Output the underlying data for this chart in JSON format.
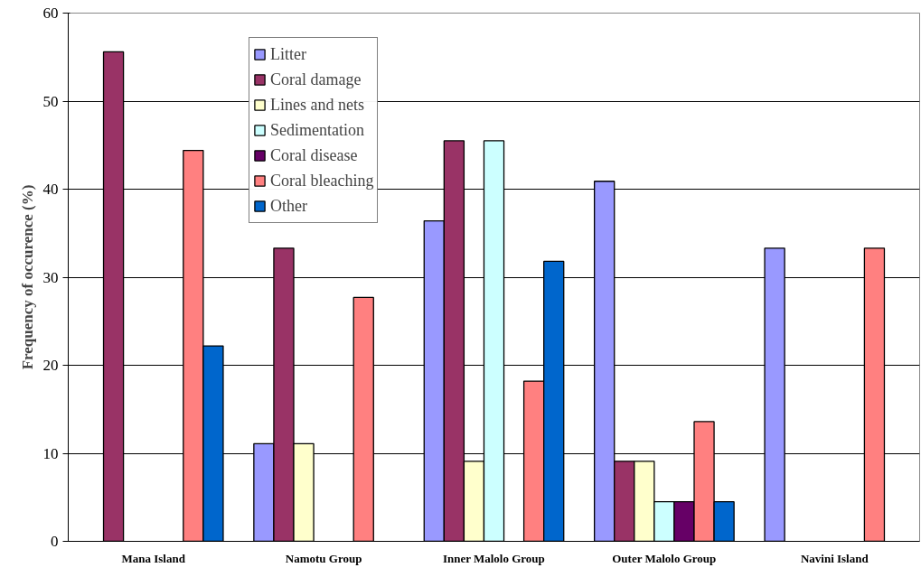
{
  "chart_data": {
    "type": "bar",
    "ylabel": "Frequency of occurence (%)",
    "categories": [
      "Mana Island",
      "Namotu Group",
      "Inner Malolo Group",
      "Outer Malolo Group",
      "Navini Island"
    ],
    "series": [
      {
        "name": "Litter",
        "color": "#9999ff",
        "values": [
          null,
          11.1,
          36.4,
          40.9,
          33.3
        ]
      },
      {
        "name": "Coral damage",
        "color": "#993366",
        "values": [
          55.6,
          33.3,
          45.5,
          9.1,
          null
        ]
      },
      {
        "name": "Lines and nets",
        "color": "#ffffcc",
        "values": [
          null,
          11.1,
          9.1,
          9.1,
          null
        ]
      },
      {
        "name": "Sedimentation",
        "color": "#ccffff",
        "values": [
          null,
          null,
          45.5,
          4.5,
          null
        ]
      },
      {
        "name": "Coral disease",
        "color": "#660066",
        "values": [
          null,
          null,
          null,
          4.5,
          null
        ]
      },
      {
        "name": "Coral bleaching",
        "color": "#ff8080",
        "values": [
          44.4,
          27.7,
          18.2,
          13.6,
          33.3
        ]
      },
      {
        "name": "Other",
        "color": "#0066cc",
        "values": [
          22.2,
          null,
          31.8,
          4.5,
          null
        ]
      }
    ],
    "ylim": [
      0,
      60
    ],
    "yticks": [
      0,
      10,
      20,
      30,
      40,
      50,
      60
    ],
    "grid": "y",
    "legend": "top left"
  }
}
